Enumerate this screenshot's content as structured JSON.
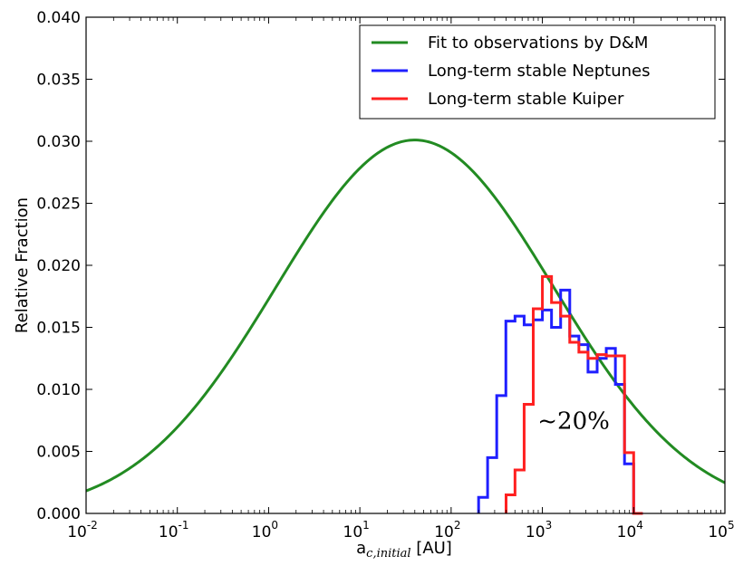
{
  "chart_data": {
    "type": "line",
    "title": "",
    "xlabel": {
      "main": "a",
      "sub": "c,initial",
      "unit": " [AU]"
    },
    "ylabel": "Relative Fraction",
    "xscale": "log",
    "xlim": [
      0.01,
      100000
    ],
    "ylim": [
      0,
      0.04
    ],
    "x_ticks": [
      {
        "base": "10",
        "exp": "-2"
      },
      {
        "base": "10",
        "exp": "-1"
      },
      {
        "base": "10",
        "exp": "0"
      },
      {
        "base": "10",
        "exp": "1"
      },
      {
        "base": "10",
        "exp": "2"
      },
      {
        "base": "10",
        "exp": "3"
      },
      {
        "base": "10",
        "exp": "4"
      },
      {
        "base": "10",
        "exp": "5"
      }
    ],
    "y_ticks": [
      "0.000",
      "0.005",
      "0.010",
      "0.015",
      "0.020",
      "0.025",
      "0.030",
      "0.035",
      "0.040"
    ],
    "legend_position": "top-right",
    "annotation": {
      "text": "~20%",
      "x": 2200,
      "y": 0.0075
    },
    "series": [
      {
        "name": "Fit to observations by D&M",
        "color": "#228B22",
        "kind": "lognormal-fit",
        "peak_x": 40,
        "peak_y": 0.0301,
        "sigma_log10": 1.52
      },
      {
        "name": "Long-term stable Neptunes",
        "color": "#1f1fff",
        "kind": "step",
        "edges": [
          200,
          251,
          316,
          398,
          501,
          631,
          794,
          1000,
          1259,
          1585,
          1995,
          2512,
          3162,
          3981,
          5012,
          6310,
          7943,
          10000,
          12589
        ],
        "values": [
          0.0013,
          0.0045,
          0.0095,
          0.0155,
          0.0159,
          0.0152,
          0.0156,
          0.0164,
          0.015,
          0.018,
          0.0143,
          0.0136,
          0.0114,
          0.0125,
          0.0133,
          0.0104,
          0.004,
          0.0
        ]
      },
      {
        "name": "Long-term stable Kuiper",
        "color": "#ff2020",
        "kind": "step",
        "edges": [
          400,
          501,
          631,
          794,
          1000,
          1259,
          1585,
          1995,
          2512,
          3162,
          3981,
          5012,
          6310,
          7943,
          10000,
          12589
        ],
        "values": [
          0.0015,
          0.0035,
          0.0088,
          0.0165,
          0.0191,
          0.017,
          0.0159,
          0.0138,
          0.013,
          0.0125,
          0.0128,
          0.0127,
          0.0127,
          0.0049,
          0.0
        ]
      }
    ]
  }
}
